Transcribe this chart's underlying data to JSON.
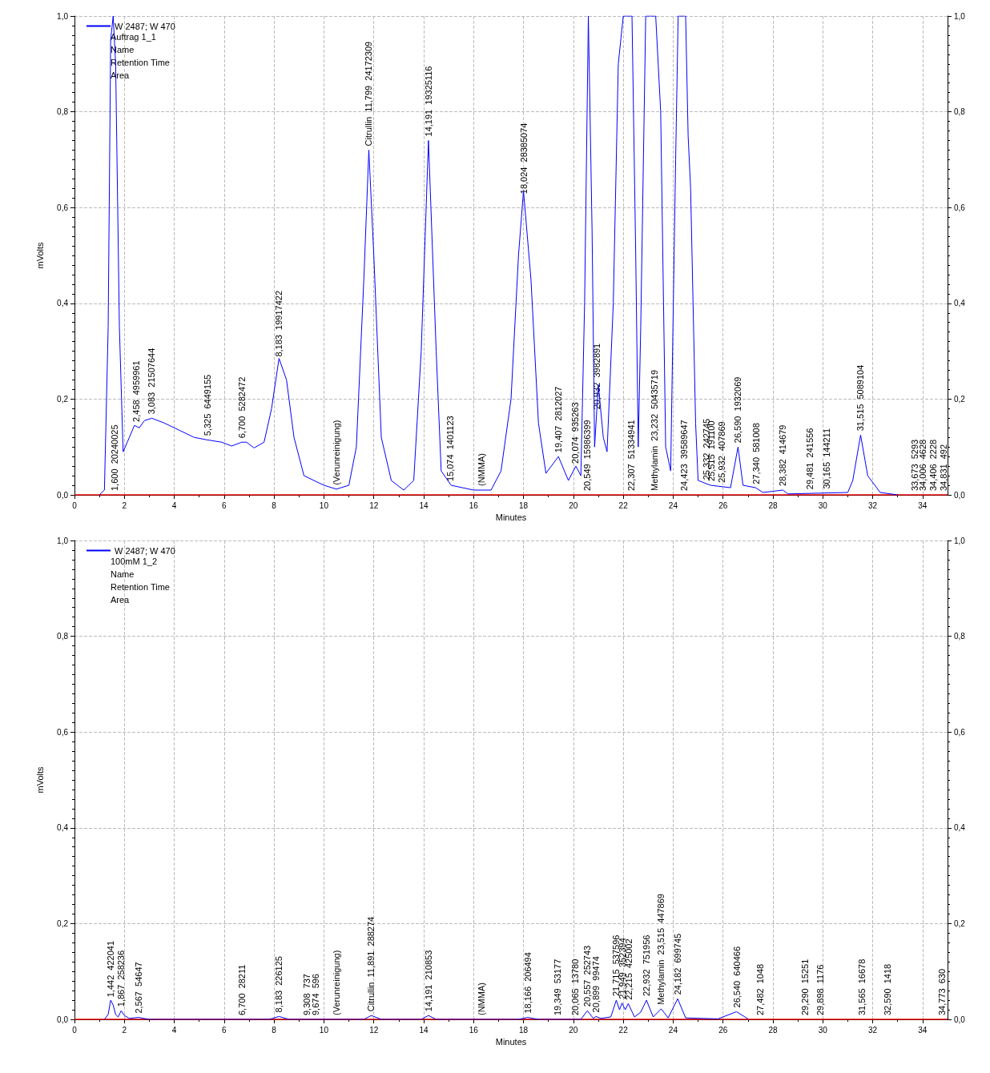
{
  "chart_data": [
    {
      "type": "line",
      "xlabel": "Minutes",
      "ylabel": "mVolts",
      "legend": "top left",
      "grid": true,
      "marker": "none",
      "xlim": [
        0,
        35
      ],
      "xticks": [
        0,
        2,
        4,
        6,
        8,
        10,
        12,
        14,
        16,
        18,
        20,
        22,
        24,
        26,
        28,
        30,
        32,
        34
      ],
      "ylim": [
        0,
        1
      ],
      "yticks": [
        {
          "value": 0,
          "label": "0,0"
        },
        {
          "value": 0.2,
          "label": "0,2"
        },
        {
          "value": 0.4,
          "label": "0,4"
        },
        {
          "value": 0.6,
          "label": "0,6"
        },
        {
          "value": 0.8,
          "label": "0,8"
        },
        {
          "value": 1,
          "label": "1,0"
        }
      ],
      "y2lim": [
        0,
        1
      ],
      "y2ticks": [
        {
          "value": 0,
          "label": "0,0"
        },
        {
          "value": 0.2,
          "label": "0,2"
        },
        {
          "value": 0.4,
          "label": "0,4"
        },
        {
          "value": 0.6,
          "label": "0,6"
        },
        {
          "value": 0.8,
          "label": "0,8"
        },
        {
          "value": 1,
          "label": "1,0"
        }
      ],
      "ref_lines": [
        {
          "axis": "y",
          "value": 0,
          "color": "#ff0000"
        }
      ],
      "series": [
        {
          "name": "W 2487; W 470",
          "color": "#0000ff",
          "x": [
            1.0,
            1.2,
            1.35,
            1.45,
            1.55,
            1.65,
            1.8,
            1.95,
            2.2,
            2.4,
            2.6,
            2.8,
            3.1,
            3.6,
            4.2,
            4.8,
            5.3,
            5.9,
            6.3,
            6.7,
            6.9,
            7.2,
            7.6,
            7.9,
            8.2,
            8.5,
            8.8,
            9.2,
            10,
            10.5,
            11,
            11.3,
            11.6,
            11.8,
            12.0,
            12.3,
            12.7,
            13.2,
            13.6,
            13.9,
            14.19,
            14.5,
            14.7,
            15.1,
            16,
            16.7,
            17.1,
            17.5,
            17.8,
            18.0,
            18.3,
            18.6,
            18.9,
            19.4,
            19.8,
            20.1,
            20.3,
            20.45,
            20.6,
            20.75,
            20.85,
            21.0,
            21.2,
            21.35,
            21.6,
            21.8,
            22.0,
            22.35,
            22.5,
            22.6,
            22.7,
            22.9,
            23.3,
            23.5,
            23.7,
            23.9,
            24.1,
            24.2,
            24.5,
            24.6,
            24.7,
            24.9,
            25.0,
            25.5,
            26.3,
            26.6,
            26.8,
            27.3,
            27.6,
            28.4,
            28.6,
            31,
            31.2,
            31.515,
            31.8,
            32.3,
            33
          ],
          "values": [
            0,
            0.01,
            0.35,
            0.95,
            1.0,
            0.9,
            0.35,
            0.09,
            0.12,
            0.145,
            0.14,
            0.155,
            0.16,
            0.15,
            0.135,
            0.12,
            0.115,
            0.11,
            0.102,
            0.11,
            0.11,
            0.098,
            0.11,
            0.18,
            0.285,
            0.24,
            0.12,
            0.04,
            0.02,
            0.012,
            0.02,
            0.1,
            0.45,
            0.72,
            0.5,
            0.12,
            0.03,
            0.01,
            0.03,
            0.3,
            0.74,
            0.3,
            0.05,
            0.02,
            0.01,
            0.01,
            0.05,
            0.2,
            0.5,
            0.635,
            0.45,
            0.15,
            0.045,
            0.08,
            0.03,
            0.06,
            0.04,
            0.4,
            1.0,
            0.55,
            0.1,
            0.23,
            0.12,
            0.09,
            0.4,
            0.9,
            1.0,
            1.0,
            0.5,
            0.1,
            0.35,
            1.0,
            1.0,
            0.8,
            0.1,
            0.05,
            0.7,
            1.0,
            1.0,
            0.75,
            0.64,
            0.15,
            0.03,
            0.02,
            0.015,
            0.1,
            0.02,
            0.015,
            0.005,
            0.01,
            0.002,
            0.005,
            0.03,
            0.125,
            0.04,
            0.005,
            0
          ]
        }
      ],
      "annotations": [
        "Auftrag 1_1",
        "Name",
        "Retention Time",
        "Area",
        {
          "text": "1,600  20240025",
          "x": 1.6,
          "y": 0
        },
        {
          "text": "2,458  4959961",
          "x": 2.458,
          "y": 0.144
        },
        {
          "text": "3,083  21507644",
          "x": 3.083,
          "y": 0.16
        },
        {
          "text": "5,325  6449155",
          "x": 5.325,
          "y": 0.115
        },
        {
          "text": "6,700  5282472",
          "x": 6.7,
          "y": 0.11
        },
        {
          "text": "8,183  19917422",
          "x": 8.183,
          "y": 0.28
        },
        {
          "text": "(Verunreinigung)",
          "x": 10.5,
          "y": 0.012
        },
        {
          "text": "Citrullin  11,799  24172309",
          "x": 11.799,
          "y": 0.72
        },
        {
          "text": "14,191  19325116",
          "x": 14.191,
          "y": 0.74
        },
        {
          "text": "15,074  1401123",
          "x": 15.074,
          "y": 0.02
        },
        {
          "text": "(NMMA)",
          "x": 16.3,
          "y": 0.01
        },
        {
          "text": "18,024  28385074",
          "x": 18.024,
          "y": 0.62
        },
        {
          "text": "19,407  2812027",
          "x": 19.407,
          "y": 0.08
        },
        {
          "text": "20,074  935263",
          "x": 20.074,
          "y": 0.057
        },
        {
          "text": "20,549  15986399",
          "x": 20.549,
          "y": 0
        },
        {
          "text": "20,932  3982891",
          "x": 20.932,
          "y": 0.17
        },
        {
          "text": "22,307  51334941",
          "x": 22.307,
          "y": 0
        },
        {
          "text": "Methylamin  23,232  50435719",
          "x": 23.232,
          "y": 0
        },
        {
          "text": "24,423  39589647",
          "x": 24.423,
          "y": 0
        },
        {
          "text": "25,332  242745",
          "x": 25.332,
          "y": 0.023
        },
        {
          "text": "25,515  191100",
          "x": 25.515,
          "y": 0.02
        },
        {
          "text": "25,932  407869",
          "x": 25.932,
          "y": 0.017
        },
        {
          "text": "26,590  1932069",
          "x": 26.59,
          "y": 0.1
        },
        {
          "text": "27,340  581008",
          "x": 27.34,
          "y": 0.014
        },
        {
          "text": "28,382  414679",
          "x": 28.382,
          "y": 0.01
        },
        {
          "text": "29,481  241556",
          "x": 29.481,
          "y": 0.003
        },
        {
          "text": "30,165  144211",
          "x": 30.165,
          "y": 0.004
        },
        {
          "text": "31,515  5089104",
          "x": 31.515,
          "y": 0.125
        },
        {
          "text": "33,673  5293",
          "x": 33.673,
          "y": 0
        },
        {
          "text": "34,006  4628",
          "x": 34.006,
          "y": 0
        },
        {
          "text": "34,406  2228",
          "x": 34.406,
          "y": 0
        },
        {
          "text": "34,831  492",
          "x": 34.831,
          "y": 0
        }
      ]
    },
    {
      "type": "line",
      "xlabel": "Minutes",
      "ylabel": "mVolts",
      "legend": "top left",
      "grid": true,
      "marker": "none",
      "xlim": [
        0,
        35
      ],
      "xticks": [
        0,
        2,
        4,
        6,
        8,
        10,
        12,
        14,
        16,
        18,
        20,
        22,
        24,
        26,
        28,
        30,
        32,
        34
      ],
      "ylim": [
        0,
        1
      ],
      "yticks": [
        {
          "value": 0,
          "label": "0,0"
        },
        {
          "value": 0.2,
          "label": "0,2"
        },
        {
          "value": 0.4,
          "label": "0,4"
        },
        {
          "value": 0.6,
          "label": "0,6"
        },
        {
          "value": 0.8,
          "label": "0,8"
        },
        {
          "value": 1,
          "label": "1,0"
        }
      ],
      "y2lim": [
        0,
        1
      ],
      "y2ticks": [
        {
          "value": 0,
          "label": "0,0"
        },
        {
          "value": 0.2,
          "label": "0,2"
        },
        {
          "value": 0.4,
          "label": "0,4"
        },
        {
          "value": 0.6,
          "label": "0,6"
        },
        {
          "value": 0.8,
          "label": "0,8"
        },
        {
          "value": 1,
          "label": "1,0"
        }
      ],
      "ref_lines": [
        {
          "axis": "y",
          "value": 0,
          "color": "#ff0000"
        }
      ],
      "series": [
        {
          "name": "W 2487; W 470",
          "color": "#0000ff",
          "x": [
            1.2,
            1.35,
            1.45,
            1.55,
            1.65,
            1.75,
            1.87,
            2.0,
            2.2,
            2.567,
            3,
            7.8,
            8.2,
            8.6,
            11.6,
            11.9,
            12.3,
            13.9,
            14.19,
            14.5,
            17.8,
            18.17,
            18.6,
            20.3,
            20.56,
            20.8,
            20.9,
            21.1,
            21.5,
            21.72,
            21.85,
            21.95,
            22.08,
            22.2,
            22.45,
            22.7,
            22.93,
            23.2,
            23.52,
            23.8,
            24.18,
            24.5,
            25.8,
            26.54,
            27
          ],
          "values": [
            0,
            0.01,
            0.04,
            0.03,
            0.01,
            0.005,
            0.018,
            0.008,
            0.002,
            0.004,
            0,
            0,
            0.006,
            0,
            0,
            0.008,
            0,
            0,
            0.008,
            0,
            0,
            0.004,
            0,
            0,
            0.018,
            0.002,
            0.006,
            0.002,
            0.005,
            0.04,
            0.02,
            0.034,
            0.02,
            0.033,
            0.005,
            0.015,
            0.04,
            0.005,
            0.022,
            0.003,
            0.043,
            0.003,
            0.001,
            0.016,
            0.001
          ]
        }
      ],
      "annotations": [
        "100mM 1_2",
        "Name",
        "Retention Time",
        "Area",
        {
          "text": "1,442  422041",
          "x": 1.442,
          "y": 0.038
        },
        {
          "text": "1,867  258236",
          "x": 1.867,
          "y": 0.018
        },
        {
          "text": "2,567  54647",
          "x": 2.567,
          "y": 0.004
        },
        {
          "text": "6,700  28211",
          "x": 6.7,
          "y": 0
        },
        {
          "text": "8,183  226125",
          "x": 8.183,
          "y": 0.006
        },
        {
          "text": "9,308  737",
          "x": 9.308,
          "y": 0
        },
        {
          "text": "9,674  596",
          "x": 9.674,
          "y": 0
        },
        {
          "text": "(Verunreinigung)",
          "x": 10.5,
          "y": 0
        },
        {
          "text": "Citrullin  11,891  288274",
          "x": 11.891,
          "y": 0.008
        },
        {
          "text": "14,191  210853",
          "x": 14.191,
          "y": 0.008
        },
        {
          "text": "(NMMA)",
          "x": 16.3,
          "y": 0
        },
        {
          "text": "18,166  206494",
          "x": 18.166,
          "y": 0.004
        },
        {
          "text": "19,349  53177",
          "x": 19.349,
          "y": 0
        },
        {
          "text": "20,065  13780",
          "x": 20.065,
          "y": 0
        },
        {
          "text": "20,557  252743",
          "x": 20.557,
          "y": 0.018
        },
        {
          "text": "20,899  99474",
          "x": 20.899,
          "y": 0.006
        },
        {
          "text": "21,715  537596",
          "x": 21.715,
          "y": 0.04
        },
        {
          "text": "21,949  352394",
          "x": 21.949,
          "y": 0.034
        },
        {
          "text": "22,215  425002",
          "x": 22.215,
          "y": 0.032
        },
        {
          "text": "22,932  751956",
          "x": 22.932,
          "y": 0.04
        },
        {
          "text": "Methylamin  23,515  447869",
          "x": 23.515,
          "y": 0.022
        },
        {
          "text": "24,182  699745",
          "x": 24.182,
          "y": 0.043
        },
        {
          "text": "26,540  640466",
          "x": 26.54,
          "y": 0.016
        },
        {
          "text": "27,482  1048",
          "x": 27.482,
          "y": 0
        },
        {
          "text": "29,290  15251",
          "x": 29.29,
          "y": 0
        },
        {
          "text": "29,898  1176",
          "x": 29.898,
          "y": 0
        },
        {
          "text": "31,565  16678",
          "x": 31.565,
          "y": 0
        },
        {
          "text": "32,590  1418",
          "x": 32.59,
          "y": 0
        },
        {
          "text": "34,773  630",
          "x": 34.773,
          "y": 0
        }
      ]
    }
  ]
}
